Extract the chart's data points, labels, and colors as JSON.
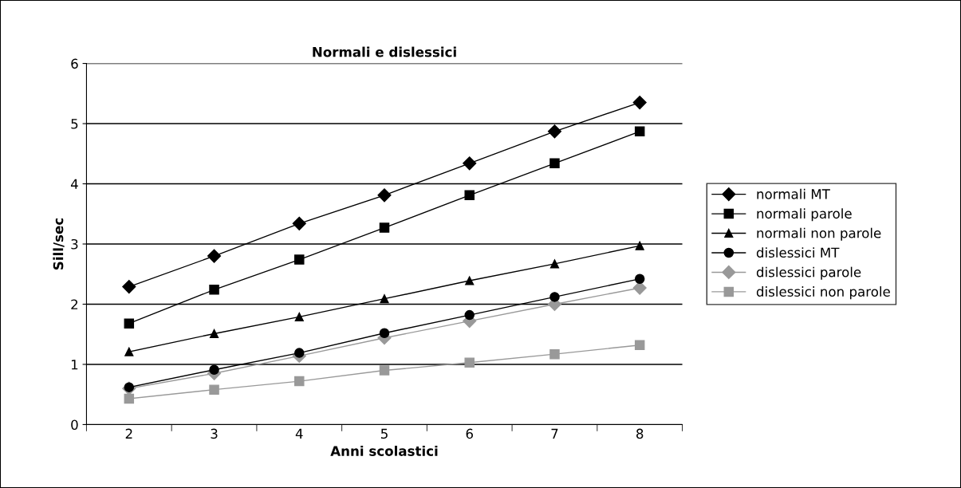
{
  "chart_data": {
    "type": "line",
    "title": "Normali e dislessici",
    "xlabel": "Anni scolastici",
    "ylabel": "Sill/sec",
    "categories": [
      "2",
      "3",
      "4",
      "5",
      "6",
      "7",
      "8"
    ],
    "ylim": [
      0,
      6
    ],
    "yticks": [
      0,
      1,
      2,
      3,
      4,
      5,
      6
    ],
    "grid": "y",
    "legend": "right",
    "series": [
      {
        "name": "normali MT",
        "color": "#000000",
        "marker": "diamond",
        "values": [
          2.29,
          2.8,
          3.34,
          3.81,
          4.34,
          4.87,
          5.35
        ]
      },
      {
        "name": "normali parole",
        "color": "#000000",
        "marker": "square",
        "values": [
          1.68,
          2.24,
          2.74,
          3.27,
          3.81,
          4.34,
          4.87
        ]
      },
      {
        "name": "normali non parole",
        "color": "#000000",
        "marker": "triangle",
        "values": [
          1.21,
          1.51,
          1.79,
          2.09,
          2.39,
          2.67,
          2.97
        ]
      },
      {
        "name": "dislessici MT",
        "color": "#000000",
        "marker": "circle",
        "values": [
          0.62,
          0.91,
          1.19,
          1.52,
          1.82,
          2.12,
          2.42
        ]
      },
      {
        "name": "dislessici parole",
        "color": "#999999",
        "marker": "diamond",
        "values": [
          0.6,
          0.85,
          1.14,
          1.44,
          1.72,
          2.0,
          2.27
        ]
      },
      {
        "name": "dislessici non parole",
        "color": "#999999",
        "marker": "square",
        "values": [
          0.43,
          0.58,
          0.72,
          0.9,
          1.03,
          1.17,
          1.32
        ]
      }
    ]
  }
}
